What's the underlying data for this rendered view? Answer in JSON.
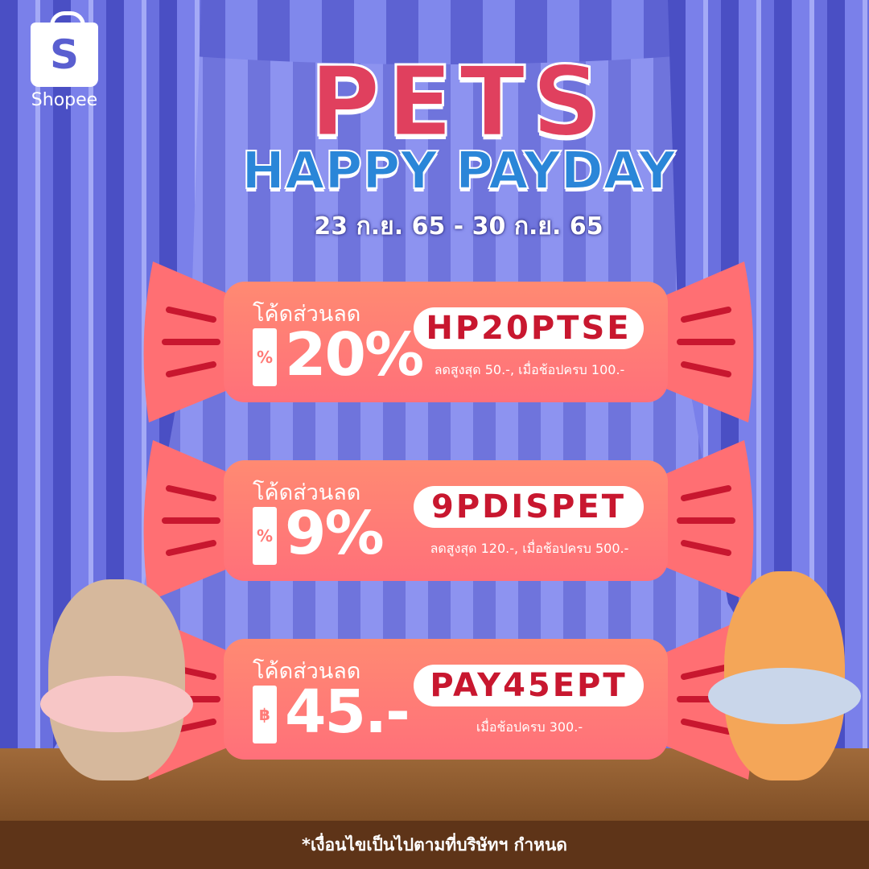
{
  "brand": {
    "name": "Shopee",
    "logo_letter": "S"
  },
  "title": {
    "line1": "PETS",
    "line2": "HAPPY PAYDAY",
    "date": "23 ก.ย. 65 - 30 ก.ย. 65"
  },
  "vouchers": [
    {
      "label": "โค้ดส่วนลด",
      "icon": "percent",
      "icon_text": "%",
      "amount": "20%",
      "code": "HP20PTSE",
      "condition": "ลดสูงสุด 50.-, เมื่อช้อปครบ 100.-"
    },
    {
      "label": "โค้ดส่วนลด",
      "icon": "percent",
      "icon_text": "%",
      "amount": "9%",
      "code": "9PDISPET",
      "condition": "ลดสูงสุด 120.-, เมื่อช้อปครบ 500.-"
    },
    {
      "label": "โค้ดส่วนลด",
      "icon": "baht",
      "icon_text": "฿",
      "amount": "45.-",
      "code": "PAY45EPT",
      "condition": "เมื่อช้อปครบ 300.-"
    }
  ],
  "footer": "*เงื่อนไขเป็นไปตามที่บริษัทฯ กำหนด",
  "colors": {
    "code_text": "#c8172f",
    "card": "#ff7a76",
    "title_red": "#e0405e",
    "title_blue": "#2a86d8",
    "curtain": "#5a5fd0"
  }
}
